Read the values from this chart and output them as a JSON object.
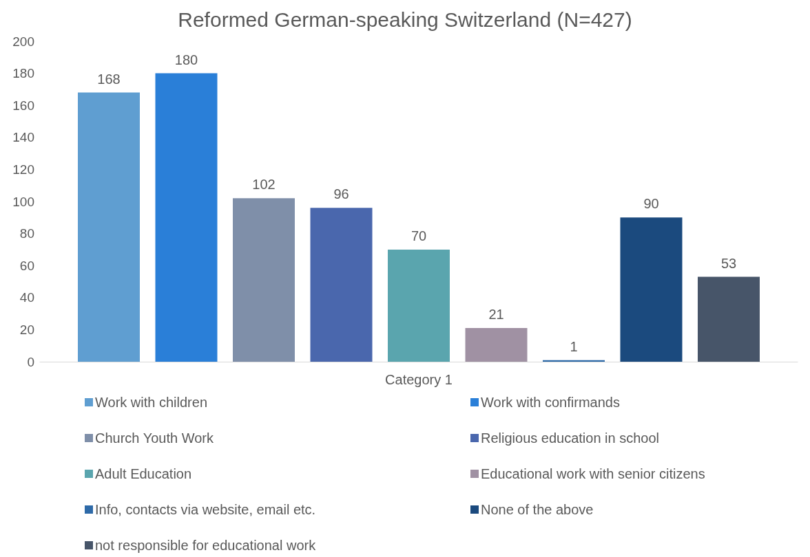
{
  "chart_data": {
    "type": "bar",
    "title": "Reformed German-speaking Switzerland (N=427)",
    "categories": [
      "Category 1"
    ],
    "series": [
      {
        "name": "Work with children",
        "color": "#5f9ed1",
        "values": [
          168
        ]
      },
      {
        "name": "Work with confirmands",
        "color": "#2a7fd8",
        "values": [
          180
        ]
      },
      {
        "name": "Church Youth Work",
        "color": "#7f8fa9",
        "values": [
          102
        ]
      },
      {
        "name": "Religious education in school",
        "color": "#4a67ad",
        "values": [
          96
        ]
      },
      {
        "name": "Adult Education",
        "color": "#5aa5ae",
        "values": [
          70
        ]
      },
      {
        "name": "Educational work with senior citizens",
        "color": "#a091a3",
        "values": [
          21
        ]
      },
      {
        "name": "Info, contacts via website, email etc.",
        "color": "#2e6aa8",
        "values": [
          1
        ]
      },
      {
        "name": "None of the above",
        "color": "#1b4a7e",
        "values": [
          90
        ]
      },
      {
        "name": "not responsible for educational work",
        "color": "#475569",
        "values": [
          53
        ]
      }
    ],
    "ylim": [
      0,
      200
    ],
    "yticks": [
      0,
      20,
      40,
      60,
      80,
      100,
      120,
      140,
      160,
      180,
      200
    ],
    "data_labels": true,
    "legend": "bottom",
    "grid": false
  }
}
